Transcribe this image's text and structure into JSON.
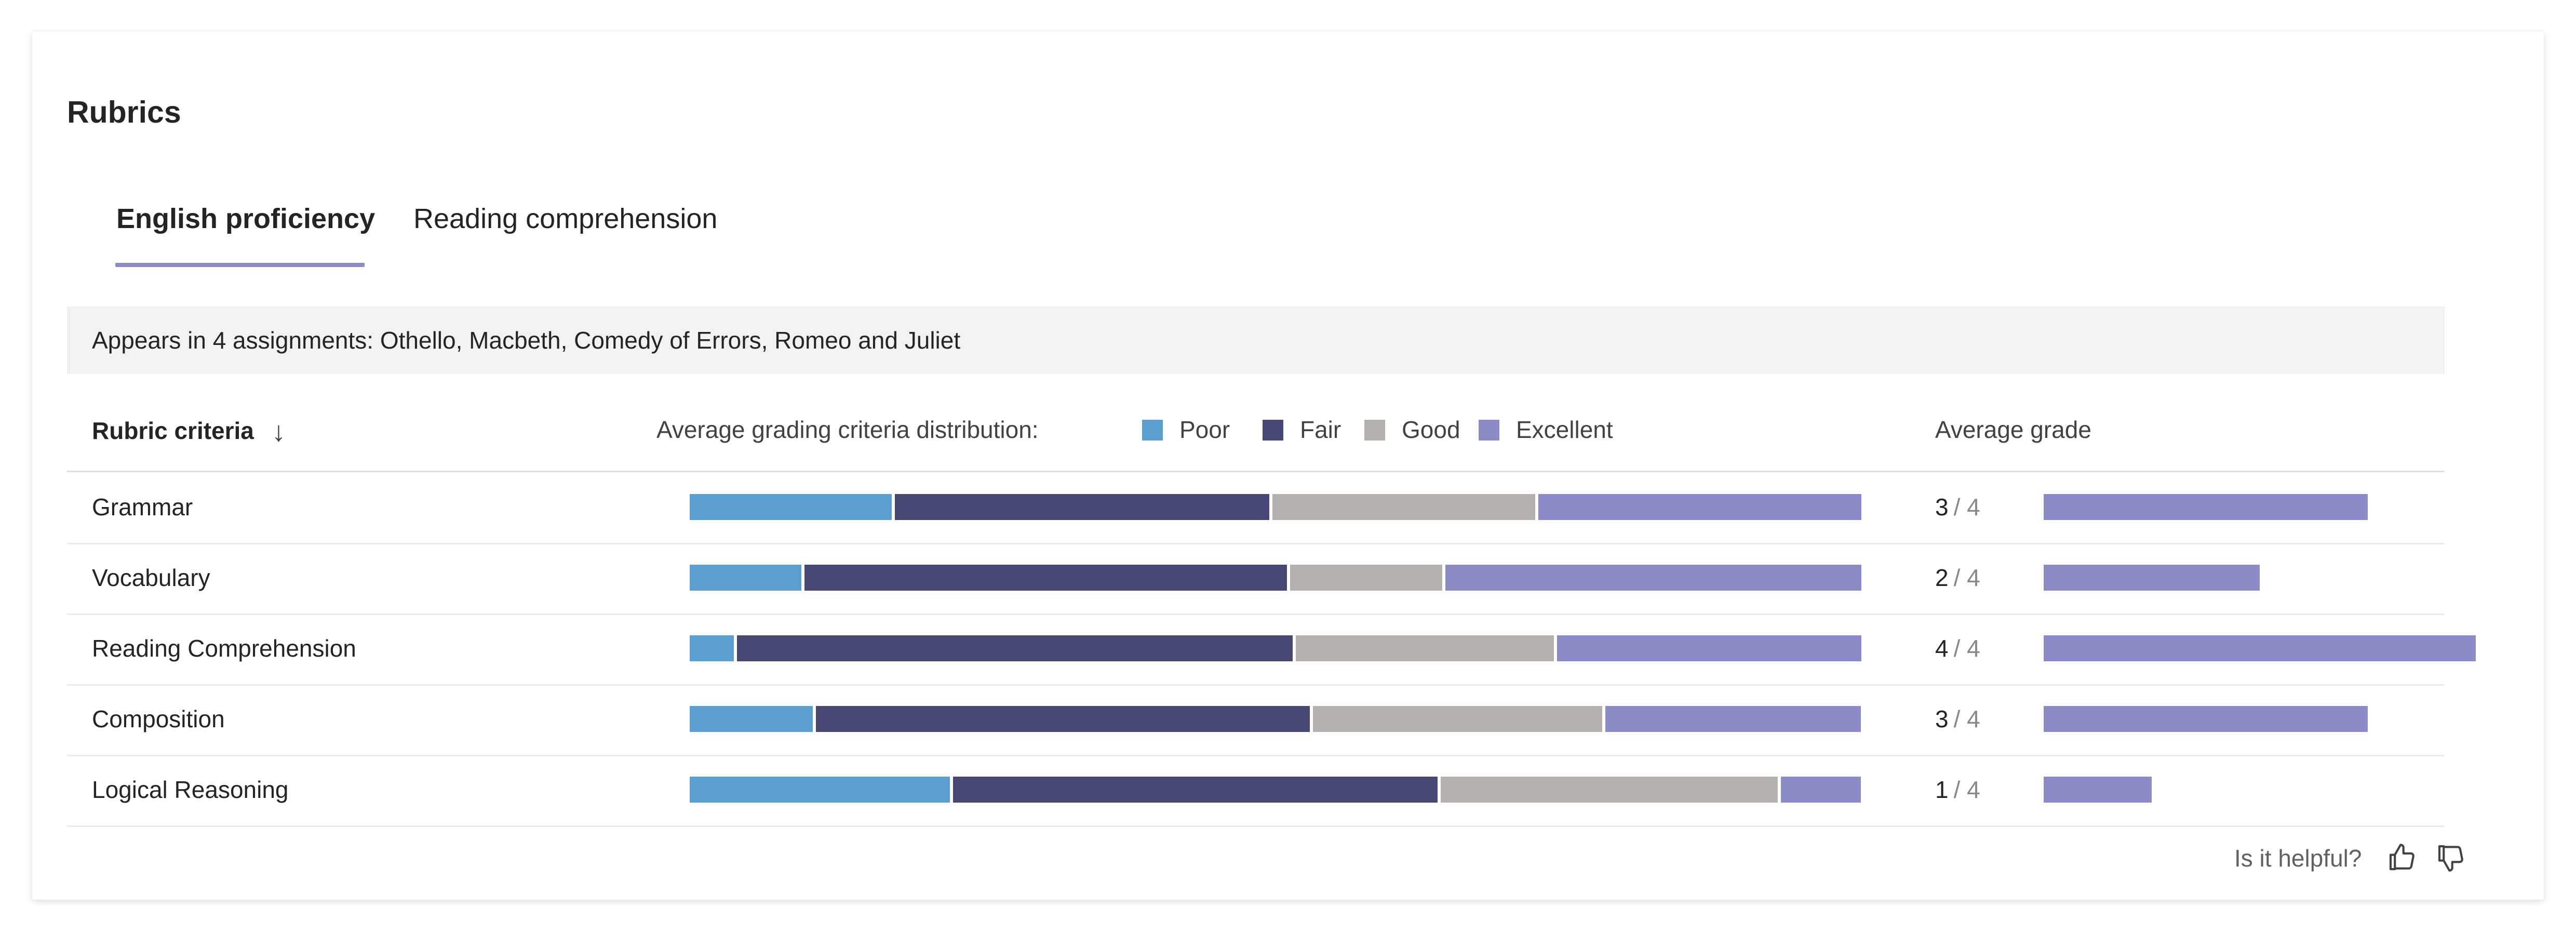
{
  "title": "Rubrics",
  "tabs": [
    {
      "label": "English proficiency",
      "active": true
    },
    {
      "label": "Reading comprehension",
      "active": false
    }
  ],
  "assignments_text": "Appears in 4 assignments: Othello, Macbeth, Comedy of Errors, Romeo and Juliet",
  "columns": {
    "criteria": "Rubric criteria",
    "distribution": "Average grading criteria distribution:",
    "average": "Average grade"
  },
  "icons": {
    "sort": "arrow-down-icon",
    "like": "thumbs-up-icon",
    "dislike": "thumbs-down-icon"
  },
  "colors": {
    "poor": "#5b9fd1",
    "fair": "#464775",
    "good": "#b3b0ad",
    "excellent": "#8b8cc7"
  },
  "legend": [
    {
      "key": "poor",
      "label": "Poor"
    },
    {
      "key": "fair",
      "label": "Fair"
    },
    {
      "key": "good",
      "label": "Good"
    },
    {
      "key": "excellent",
      "label": "Excellent"
    }
  ],
  "chart_data": {
    "type": "bar",
    "categories": [
      "Grammar",
      "Vocabulary",
      "Reading Comprehension",
      "Composition",
      "Logical Reasoning"
    ],
    "series": [
      {
        "name": "Poor",
        "values": [
          17.4,
          9.6,
          3.8,
          10.6,
          22.4
        ]
      },
      {
        "name": "Fair",
        "values": [
          32.2,
          41.5,
          47.8,
          42.5,
          41.7
        ]
      },
      {
        "name": "Good",
        "values": [
          22.6,
          13.1,
          22.2,
          24.9,
          29.0
        ]
      },
      {
        "name": "Excellent",
        "values": [
          27.8,
          35.8,
          26.2,
          22.0,
          6.9
        ]
      }
    ],
    "grades": [
      {
        "value": "3",
        "max": "/ 4",
        "fraction": 0.75
      },
      {
        "value": "2",
        "max": "/ 4",
        "fraction": 0.5
      },
      {
        "value": "4",
        "max": "/ 4",
        "fraction": 1.0
      },
      {
        "value": "3",
        "max": "/ 4",
        "fraction": 0.75
      },
      {
        "value": "1",
        "max": "/ 4",
        "fraction": 0.25
      }
    ]
  },
  "footer": {
    "helpful": "Is it helpful?"
  }
}
